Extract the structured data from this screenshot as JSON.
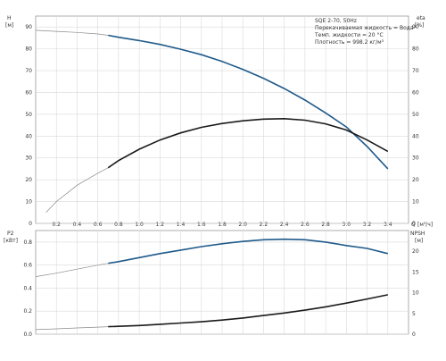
{
  "chart_data": [
    {
      "type": "line",
      "title": "",
      "info_lines": [
        "SQE 2-70, 50Hz",
        "Перекачиваемая жидкость = Вода",
        "Темп. жидкости = 20 °C",
        "Плотность = 998.2 кг/м³"
      ],
      "left_axis_label": "H",
      "left_axis_unit": "[м]",
      "right_axis_label": "eta",
      "right_axis_unit": "[%]",
      "xlabel": "Q",
      "xunit": "[м³/ч]",
      "xlim": [
        0,
        3.6
      ],
      "ylim_left": [
        0,
        95
      ],
      "ylim_right": [
        0,
        95
      ],
      "x_ticks": [
        "0.2",
        "0.4",
        "0.6",
        "0.8",
        "1.0",
        "1.2",
        "1.4",
        "1.6",
        "1.8",
        "2.0",
        "2.2",
        "2.4",
        "2.6",
        "2.8",
        "3.0",
        "3.2",
        "3.4"
      ],
      "y_ticks_left": [
        "0",
        "10",
        "20",
        "30",
        "40",
        "50",
        "60",
        "70",
        "80",
        "90"
      ],
      "y_ticks_right": [
        "0",
        "10",
        "20",
        "30",
        "40",
        "50",
        "60",
        "70",
        "80",
        "90"
      ],
      "grid": true,
      "series": [
        {
          "name": "H",
          "axis": "left",
          "color": "#1f5a8a",
          "x": [
            0,
            0.2,
            0.4,
            0.6,
            0.7,
            0.8,
            1.0,
            1.2,
            1.4,
            1.6,
            1.8,
            2.0,
            2.2,
            2.4,
            2.6,
            2.8,
            3.0,
            3.2,
            3.4
          ],
          "y": [
            88.5,
            88.0,
            87.5,
            86.8,
            86.2,
            85.3,
            83.8,
            82.0,
            79.8,
            77.3,
            74.2,
            70.6,
            66.5,
            61.8,
            56.5,
            50.6,
            44.2,
            35.2,
            25.0
          ],
          "thin_until_x": 0.7
        },
        {
          "name": "eta",
          "axis": "right",
          "color": "#1a1a1a",
          "x": [
            0.1,
            0.2,
            0.4,
            0.6,
            0.7,
            0.8,
            1.0,
            1.2,
            1.4,
            1.6,
            1.8,
            2.0,
            2.2,
            2.4,
            2.6,
            2.8,
            3.0,
            3.2,
            3.4
          ],
          "y": [
            5.0,
            10.0,
            17.5,
            23.0,
            25.5,
            28.8,
            34.0,
            38.2,
            41.5,
            44.0,
            45.8,
            47.0,
            47.8,
            48.0,
            47.3,
            45.6,
            42.8,
            38.2,
            33.0
          ],
          "thin_until_x": 0.7
        }
      ]
    },
    {
      "type": "line",
      "title": "",
      "left_axis_label": "P2",
      "left_axis_unit": "[кВт]",
      "right_axis_label": "NPSH",
      "right_axis_unit": "[м]",
      "xlim": [
        0,
        3.6
      ],
      "ylim_left": [
        0,
        0.9
      ],
      "ylim_right": [
        0,
        25
      ],
      "y_ticks_left": [
        "0.0",
        "0.2",
        "0.4",
        "0.6",
        "0.8"
      ],
      "y_ticks_right": [
        "0",
        "5",
        "10",
        "15",
        "20"
      ],
      "grid": true,
      "series": [
        {
          "name": "P2",
          "axis": "left",
          "color": "#1f5a8a",
          "x": [
            0,
            0.2,
            0.4,
            0.6,
            0.7,
            0.8,
            1.0,
            1.2,
            1.4,
            1.6,
            1.8,
            2.0,
            2.2,
            2.4,
            2.6,
            2.8,
            3.0,
            3.2,
            3.4
          ],
          "y": [
            0.5,
            0.53,
            0.565,
            0.6,
            0.615,
            0.63,
            0.665,
            0.7,
            0.73,
            0.76,
            0.785,
            0.805,
            0.82,
            0.825,
            0.82,
            0.8,
            0.77,
            0.745,
            0.7
          ],
          "thin_until_x": 0.7
        },
        {
          "name": "NPSH",
          "axis": "right",
          "color": "#1a1a1a",
          "x": [
            0,
            0.2,
            0.4,
            0.6,
            0.7,
            0.8,
            1.0,
            1.2,
            1.4,
            1.6,
            1.8,
            2.0,
            2.2,
            2.4,
            2.6,
            2.8,
            3.0,
            3.2,
            3.4
          ],
          "y": [
            1.1,
            1.3,
            1.5,
            1.7,
            1.8,
            1.9,
            2.1,
            2.4,
            2.7,
            3.0,
            3.4,
            3.9,
            4.5,
            5.1,
            5.8,
            6.6,
            7.5,
            8.5,
            9.5
          ],
          "thin_until_x": 0.7
        }
      ]
    }
  ]
}
